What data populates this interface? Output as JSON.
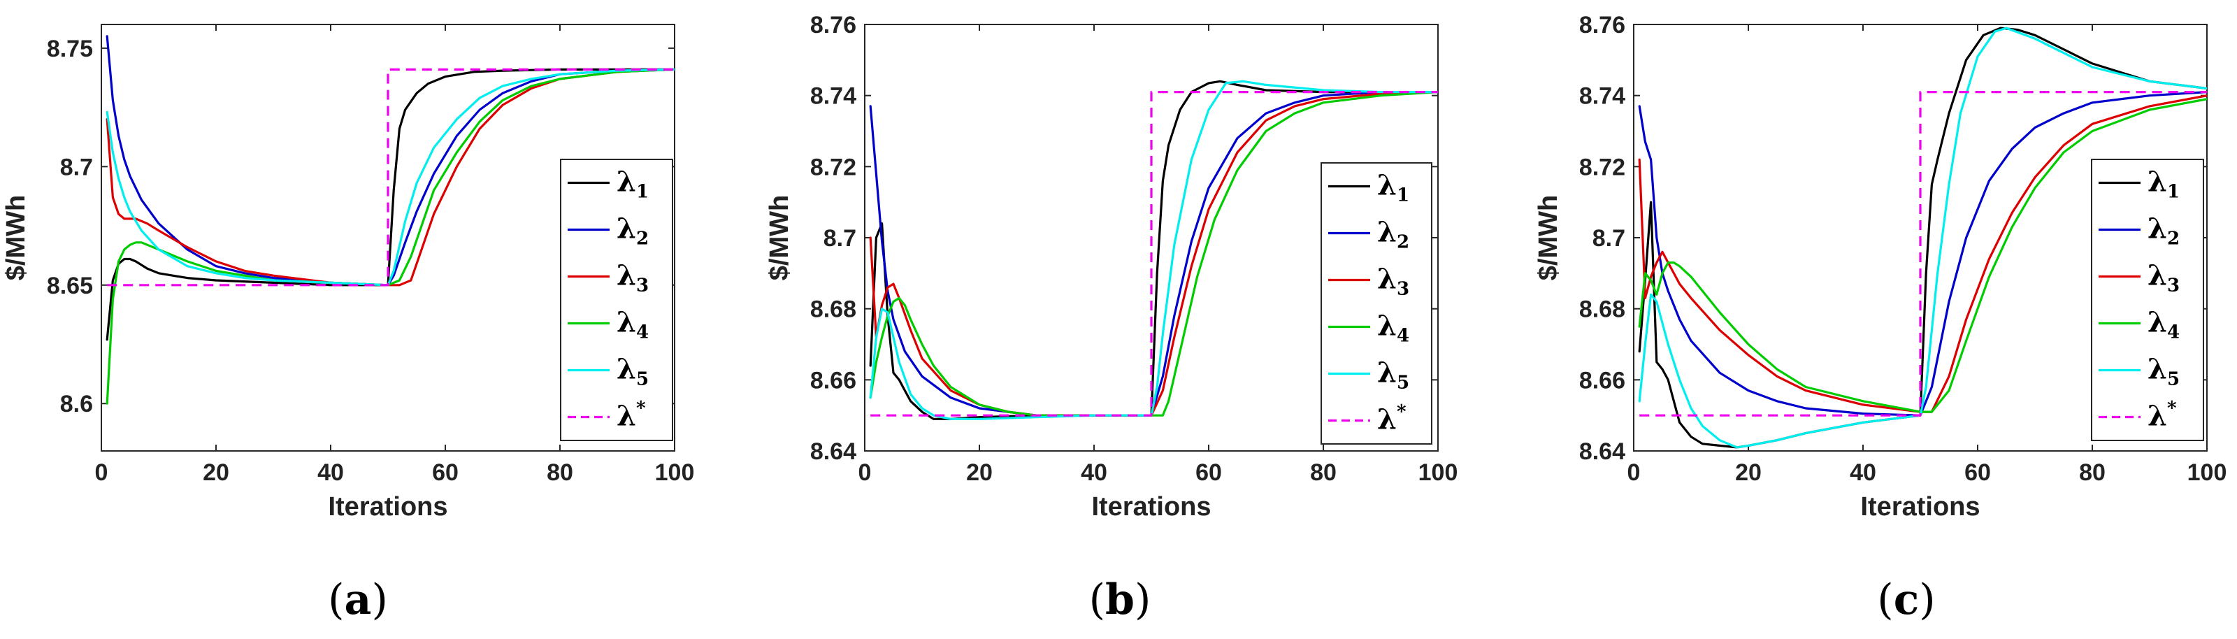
{
  "figure": {
    "panel_letters": [
      "a",
      "b",
      "c"
    ]
  },
  "chart_data": [
    {
      "type": "line",
      "panel": "a",
      "xlabel": "Iterations",
      "ylabel": "$/MWh",
      "xlim": [
        0,
        100
      ],
      "ylim": [
        8.58,
        8.76
      ],
      "xticks": [
        0,
        20,
        40,
        60,
        80,
        100
      ],
      "yticks": [
        8.6,
        8.65,
        8.7,
        8.75
      ],
      "ytick_labels": [
        "8.6",
        "8.65",
        "8.7",
        "8.75"
      ],
      "legend_position": "right-middle",
      "series": [
        {
          "name": "λ1",
          "color": "#000000",
          "style": "solid",
          "x": [
            1,
            2,
            3,
            4,
            5,
            6,
            8,
            10,
            15,
            20,
            30,
            40,
            50,
            51,
            52,
            53,
            55,
            57,
            60,
            65,
            70,
            80,
            90,
            100
          ],
          "y": [
            8.627,
            8.652,
            8.659,
            8.661,
            8.661,
            8.66,
            8.657,
            8.655,
            8.653,
            8.652,
            8.651,
            8.65,
            8.65,
            8.69,
            8.716,
            8.724,
            8.731,
            8.735,
            8.738,
            8.74,
            8.7405,
            8.741,
            8.741,
            8.741
          ]
        },
        {
          "name": "λ2",
          "color": "#0000cc",
          "style": "solid",
          "x": [
            1,
            2,
            3,
            4,
            5,
            7,
            10,
            15,
            20,
            25,
            30,
            40,
            50,
            51,
            53,
            55,
            58,
            62,
            66,
            70,
            75,
            80,
            90,
            100
          ],
          "y": [
            8.755,
            8.728,
            8.713,
            8.703,
            8.696,
            8.686,
            8.676,
            8.665,
            8.658,
            8.655,
            8.653,
            8.651,
            8.65,
            8.654,
            8.668,
            8.681,
            8.697,
            8.713,
            8.724,
            8.731,
            8.736,
            8.739,
            8.7405,
            8.741
          ]
        },
        {
          "name": "λ3",
          "color": "#dd0000",
          "style": "solid",
          "x": [
            1,
            2,
            3,
            4,
            5,
            6,
            8,
            10,
            15,
            20,
            25,
            30,
            40,
            50,
            52,
            54,
            56,
            58,
            62,
            66,
            70,
            75,
            80,
            90,
            100
          ],
          "y": [
            8.72,
            8.687,
            8.68,
            8.678,
            8.678,
            8.678,
            8.676,
            8.673,
            8.666,
            8.66,
            8.656,
            8.654,
            8.651,
            8.65,
            8.65,
            8.652,
            8.666,
            8.68,
            8.7,
            8.716,
            8.726,
            8.733,
            8.737,
            8.74,
            8.741
          ]
        },
        {
          "name": "λ4",
          "color": "#00cc00",
          "style": "solid",
          "x": [
            1,
            2,
            3,
            4,
            5,
            6,
            7,
            8,
            10,
            15,
            20,
            30,
            40,
            50,
            52,
            54,
            56,
            58,
            62,
            66,
            70,
            75,
            80,
            90,
            100
          ],
          "y": [
            8.6,
            8.644,
            8.66,
            8.665,
            8.667,
            8.668,
            8.668,
            8.667,
            8.665,
            8.66,
            8.656,
            8.652,
            8.651,
            8.65,
            8.652,
            8.662,
            8.676,
            8.69,
            8.706,
            8.719,
            8.728,
            8.734,
            8.737,
            8.74,
            8.741
          ]
        },
        {
          "name": "λ5",
          "color": "#00eeee",
          "style": "solid",
          "x": [
            1,
            2,
            3,
            4,
            5,
            7,
            10,
            15,
            20,
            25,
            30,
            40,
            50,
            51,
            53,
            55,
            58,
            62,
            66,
            70,
            75,
            80,
            90,
            100
          ],
          "y": [
            8.723,
            8.706,
            8.695,
            8.687,
            8.681,
            8.673,
            8.665,
            8.658,
            8.655,
            8.653,
            8.652,
            8.651,
            8.65,
            8.656,
            8.677,
            8.693,
            8.708,
            8.72,
            8.729,
            8.734,
            8.737,
            8.739,
            8.7405,
            8.741
          ]
        },
        {
          "name": "λ*",
          "color": "#ee00ee",
          "style": "dashed",
          "x": [
            1,
            50,
            50,
            100
          ],
          "y": [
            8.65,
            8.65,
            8.741,
            8.741
          ]
        }
      ]
    },
    {
      "type": "line",
      "panel": "b",
      "xlabel": "Iterations",
      "ylabel": "$/MWh",
      "xlim": [
        0,
        100
      ],
      "ylim": [
        8.64,
        8.76
      ],
      "xticks": [
        0,
        20,
        40,
        60,
        80,
        100
      ],
      "yticks": [
        8.64,
        8.66,
        8.68,
        8.7,
        8.72,
        8.74,
        8.76
      ],
      "ytick_labels": [
        "8.64",
        "8.66",
        "8.68",
        "8.7",
        "8.72",
        "8.74",
        "8.76"
      ],
      "legend_position": "right-middle",
      "series": [
        {
          "name": "λ1",
          "color": "#000000",
          "style": "solid",
          "x": [
            1,
            2,
            3,
            4,
            5,
            6,
            7,
            8,
            10,
            12,
            15,
            20,
            30,
            40,
            50,
            51,
            52,
            53,
            55,
            57,
            60,
            62,
            65,
            70,
            80,
            90,
            100
          ],
          "y": [
            8.664,
            8.7,
            8.704,
            8.678,
            8.662,
            8.66,
            8.657,
            8.654,
            8.651,
            8.649,
            8.649,
            8.6495,
            8.65,
            8.65,
            8.65,
            8.69,
            8.716,
            8.726,
            8.736,
            8.741,
            8.7435,
            8.744,
            8.743,
            8.7415,
            8.741,
            8.741,
            8.741
          ]
        },
        {
          "name": "λ2",
          "color": "#0000cc",
          "style": "solid",
          "x": [
            1,
            2,
            3,
            4,
            5,
            7,
            10,
            15,
            20,
            25,
            30,
            40,
            50,
            52,
            54,
            57,
            60,
            65,
            70,
            75,
            80,
            90,
            100
          ],
          "y": [
            8.737,
            8.718,
            8.699,
            8.685,
            8.677,
            8.668,
            8.661,
            8.655,
            8.652,
            8.651,
            8.65,
            8.65,
            8.65,
            8.661,
            8.678,
            8.699,
            8.714,
            8.728,
            8.735,
            8.738,
            8.74,
            8.741,
            8.741
          ]
        },
        {
          "name": "λ3",
          "color": "#dd0000",
          "style": "solid",
          "x": [
            1,
            2,
            3,
            4,
            5,
            6,
            8,
            10,
            15,
            20,
            25,
            30,
            40,
            50,
            52,
            54,
            57,
            60,
            65,
            70,
            75,
            80,
            90,
            100
          ],
          "y": [
            8.7,
            8.672,
            8.681,
            8.686,
            8.687,
            8.683,
            8.674,
            8.666,
            8.657,
            8.653,
            8.651,
            8.65,
            8.65,
            8.65,
            8.657,
            8.672,
            8.692,
            8.708,
            8.724,
            8.733,
            8.737,
            8.739,
            8.7405,
            8.741
          ]
        },
        {
          "name": "λ4",
          "color": "#00cc00",
          "style": "solid",
          "x": [
            1,
            2,
            3,
            4,
            5,
            6,
            7,
            8,
            10,
            12,
            15,
            20,
            25,
            30,
            40,
            50,
            52,
            53,
            55,
            58,
            61,
            65,
            70,
            75,
            80,
            90,
            100
          ],
          "y": [
            8.655,
            8.665,
            8.672,
            8.678,
            8.682,
            8.683,
            8.681,
            8.677,
            8.67,
            8.664,
            8.658,
            8.653,
            8.651,
            8.65,
            8.65,
            8.65,
            8.65,
            8.654,
            8.668,
            8.689,
            8.705,
            8.719,
            8.73,
            8.735,
            8.738,
            8.74,
            8.741
          ]
        },
        {
          "name": "λ5",
          "color": "#00eeee",
          "style": "solid",
          "x": [
            1,
            2,
            3,
            4,
            5,
            6,
            8,
            10,
            12,
            15,
            20,
            30,
            40,
            50,
            51,
            52,
            54,
            57,
            60,
            63,
            66,
            70,
            80,
            90,
            100
          ],
          "y": [
            8.655,
            8.672,
            8.68,
            8.679,
            8.672,
            8.665,
            8.656,
            8.652,
            8.65,
            8.649,
            8.649,
            8.6495,
            8.65,
            8.65,
            8.658,
            8.673,
            8.698,
            8.722,
            8.736,
            8.7435,
            8.744,
            8.743,
            8.7415,
            8.741,
            8.741
          ]
        },
        {
          "name": "λ*",
          "color": "#ee00ee",
          "style": "dashed",
          "x": [
            1,
            50,
            50,
            100
          ],
          "y": [
            8.65,
            8.65,
            8.741,
            8.741
          ]
        }
      ]
    },
    {
      "type": "line",
      "panel": "c",
      "xlabel": "Iterations",
      "ylabel": "$/MWh",
      "xlim": [
        0,
        100
      ],
      "ylim": [
        8.64,
        8.76
      ],
      "xticks": [
        0,
        20,
        40,
        60,
        80,
        100
      ],
      "yticks": [
        8.64,
        8.66,
        8.68,
        8.7,
        8.72,
        8.74,
        8.76
      ],
      "ytick_labels": [
        "8.64",
        "8.66",
        "8.68",
        "8.7",
        "8.72",
        "8.74",
        "8.76"
      ],
      "legend_position": "right-middle",
      "series": [
        {
          "name": "λ1",
          "color": "#000000",
          "style": "solid",
          "x": [
            1,
            2,
            3,
            4,
            5,
            6,
            7,
            8,
            10,
            12,
            15,
            18,
            20,
            25,
            30,
            40,
            50,
            51,
            52,
            53,
            55,
            58,
            61,
            64,
            67,
            70,
            75,
            80,
            90,
            100
          ],
          "y": [
            8.668,
            8.688,
            8.71,
            8.665,
            8.663,
            8.66,
            8.654,
            8.648,
            8.644,
            8.642,
            8.6415,
            8.641,
            8.6415,
            8.643,
            8.645,
            8.648,
            8.65,
            8.69,
            8.715,
            8.722,
            8.735,
            8.75,
            8.757,
            8.759,
            8.7585,
            8.757,
            8.753,
            8.749,
            8.744,
            8.742
          ]
        },
        {
          "name": "λ2",
          "color": "#0000cc",
          "style": "solid",
          "x": [
            1,
            2,
            3,
            4,
            5,
            6,
            8,
            10,
            15,
            20,
            25,
            30,
            40,
            50,
            52,
            55,
            58,
            62,
            66,
            70,
            75,
            80,
            90,
            100
          ],
          "y": [
            8.737,
            8.727,
            8.722,
            8.7,
            8.69,
            8.685,
            8.677,
            8.671,
            8.662,
            8.657,
            8.654,
            8.652,
            8.6505,
            8.65,
            8.658,
            8.682,
            8.7,
            8.716,
            8.725,
            8.731,
            8.735,
            8.738,
            8.74,
            8.741
          ]
        },
        {
          "name": "λ3",
          "color": "#dd0000",
          "style": "solid",
          "x": [
            1,
            2,
            3,
            4,
            5,
            6,
            7,
            8,
            10,
            15,
            20,
            25,
            30,
            40,
            50,
            52,
            55,
            58,
            62,
            66,
            70,
            75,
            80,
            90,
            100
          ],
          "y": [
            8.722,
            8.683,
            8.689,
            8.693,
            8.696,
            8.693,
            8.69,
            8.687,
            8.683,
            8.674,
            8.667,
            8.661,
            8.657,
            8.653,
            8.651,
            8.651,
            8.661,
            8.677,
            8.694,
            8.707,
            8.717,
            8.726,
            8.732,
            8.737,
            8.74
          ]
        },
        {
          "name": "λ4",
          "color": "#00cc00",
          "style": "solid",
          "x": [
            1,
            2,
            3,
            4,
            5,
            6,
            7,
            8,
            10,
            15,
            20,
            25,
            30,
            40,
            50,
            52,
            55,
            58,
            62,
            66,
            70,
            75,
            80,
            90,
            100
          ],
          "y": [
            8.675,
            8.69,
            8.688,
            8.684,
            8.69,
            8.693,
            8.693,
            8.692,
            8.689,
            8.679,
            8.67,
            8.663,
            8.658,
            8.654,
            8.651,
            8.651,
            8.657,
            8.671,
            8.689,
            8.703,
            8.714,
            8.724,
            8.73,
            8.736,
            8.739
          ]
        },
        {
          "name": "λ5",
          "color": "#00eeee",
          "style": "solid",
          "x": [
            1,
            2,
            3,
            4,
            5,
            6,
            8,
            10,
            12,
            15,
            18,
            20,
            25,
            30,
            40,
            50,
            51,
            53,
            55,
            57,
            60,
            63,
            65,
            70,
            75,
            80,
            90,
            100
          ],
          "y": [
            8.654,
            8.67,
            8.684,
            8.682,
            8.676,
            8.67,
            8.66,
            8.652,
            8.647,
            8.643,
            8.641,
            8.6415,
            8.643,
            8.645,
            8.648,
            8.65,
            8.658,
            8.69,
            8.715,
            8.735,
            8.751,
            8.758,
            8.759,
            8.756,
            8.752,
            8.748,
            8.744,
            8.742
          ]
        },
        {
          "name": "λ*",
          "color": "#ee00ee",
          "style": "dashed",
          "x": [
            1,
            50,
            50,
            100
          ],
          "y": [
            8.65,
            8.65,
            8.741,
            8.741
          ]
        }
      ]
    }
  ]
}
